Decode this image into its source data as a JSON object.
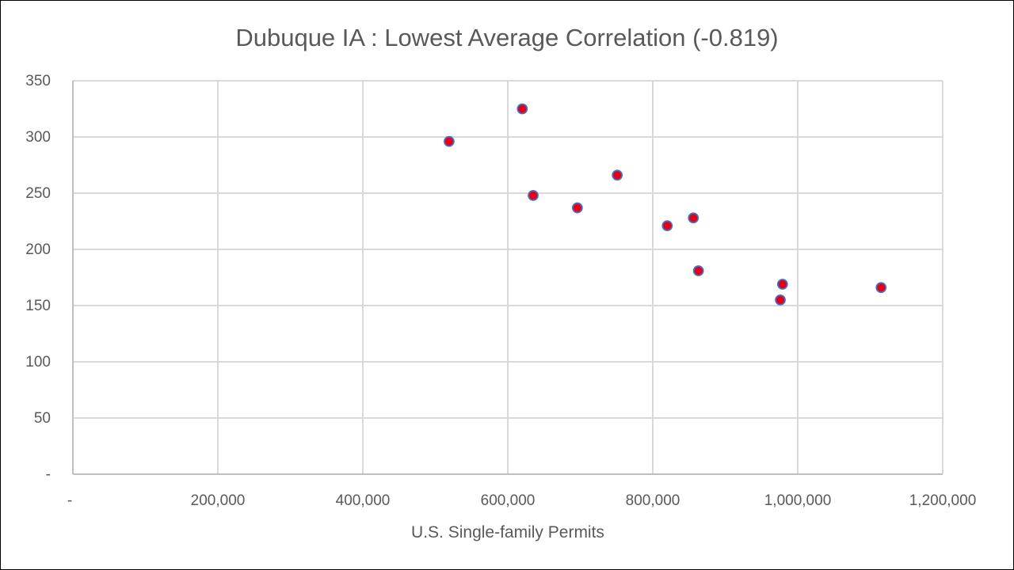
{
  "chart_data": {
    "type": "scatter",
    "title": "Dubuque IA : Lowest Average Correlation (-0.819)",
    "xlabel": "U.S. Single-family Permits",
    "ylabel": "",
    "xlim": [
      0,
      1200000
    ],
    "ylim": [
      0,
      350
    ],
    "x_ticks": [
      0,
      200000,
      400000,
      600000,
      800000,
      1000000,
      1200000
    ],
    "x_tick_labels": [
      "-",
      "200,000",
      "400,000",
      "600,000",
      "800,000",
      "1,000,000",
      "1,200,000"
    ],
    "y_ticks": [
      0,
      50,
      100,
      150,
      200,
      250,
      300,
      350
    ],
    "y_tick_labels": [
      "-",
      "50",
      "100",
      "150",
      "200",
      "250",
      "300",
      "350"
    ],
    "grid": true,
    "legend": "none",
    "marker_fill": "#e3001b",
    "marker_edge": "#4472c4",
    "points": [
      {
        "x": 519000,
        "y": 296
      },
      {
        "x": 620000,
        "y": 325
      },
      {
        "x": 635000,
        "y": 248
      },
      {
        "x": 696000,
        "y": 237
      },
      {
        "x": 751000,
        "y": 266
      },
      {
        "x": 820000,
        "y": 221
      },
      {
        "x": 856000,
        "y": 228
      },
      {
        "x": 863000,
        "y": 181
      },
      {
        "x": 976000,
        "y": 155
      },
      {
        "x": 979000,
        "y": 169
      },
      {
        "x": 1115000,
        "y": 166
      }
    ]
  }
}
